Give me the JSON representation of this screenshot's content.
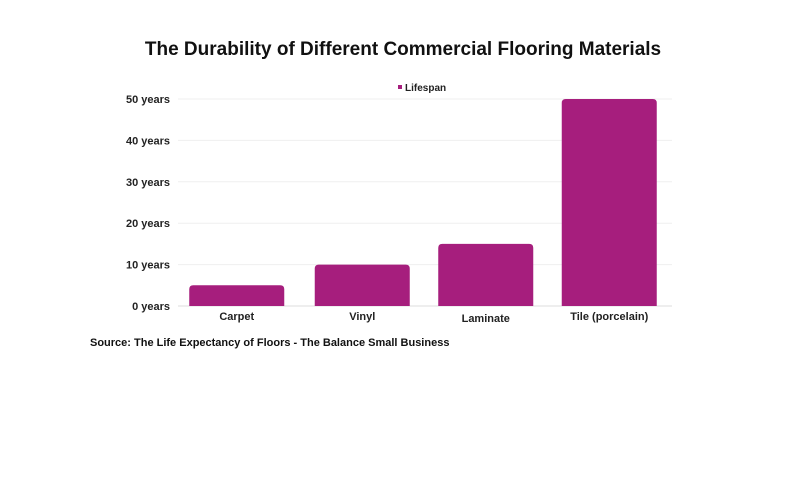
{
  "chart_data": {
    "type": "bar",
    "title": "The Durability of Different Commercial Flooring Materials",
    "categories": [
      "Carpet",
      "Vinyl",
      "Laminate",
      "Tile (porcelain)"
    ],
    "series": [
      {
        "name": "Lifespan",
        "values": [
          5,
          10,
          15,
          50
        ],
        "color": "#a61e7d"
      }
    ],
    "yticks": [
      0,
      10,
      20,
      30,
      40,
      50
    ],
    "ytick_labels": [
      "0 years",
      "10 years",
      "20 years",
      "30 years",
      "40 years",
      "50 years"
    ],
    "ylim": [
      0,
      50
    ],
    "xlabel": "",
    "ylabel": "",
    "grid": true,
    "legend_position": "top-center",
    "source": "Source: The Life Expectancy of Floors - The Balance Small Business"
  }
}
